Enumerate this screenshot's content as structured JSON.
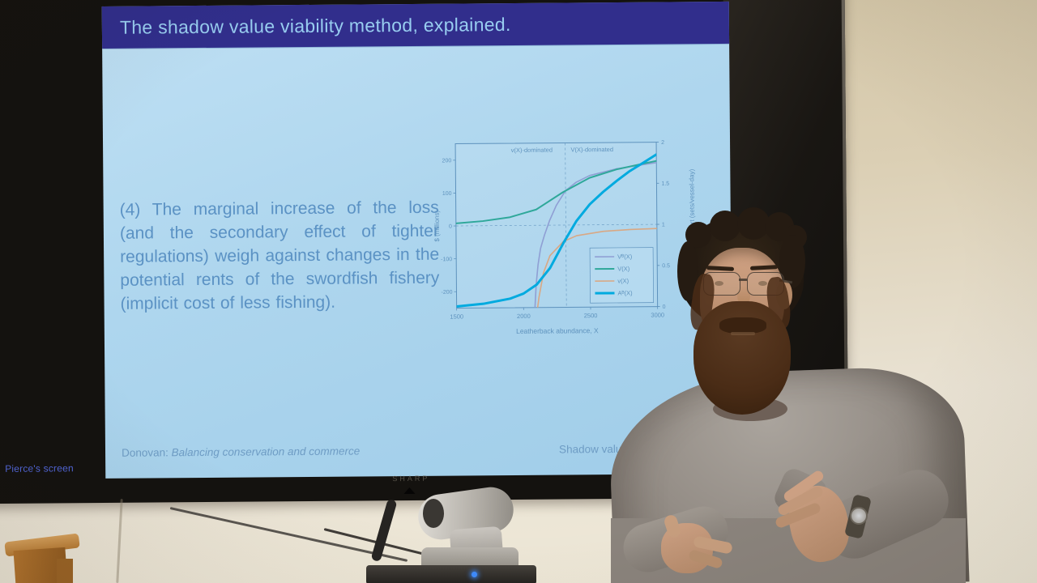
{
  "overlay": {
    "screen_share_label": "Pierce's screen"
  },
  "tv": {
    "brand": "SHARP"
  },
  "slide": {
    "title": "The shadow value viability method, explained.",
    "body": "(4) The marginal increase of the loss (and the secondary effect of tighter regulations) weigh against changes in the potential rents of the swordfish fishery (implicit cost of less fishing).",
    "footer": {
      "author": "Donovan:",
      "deck_title": "Balancing conservation and commerce",
      "right": "Shadow value viab"
    }
  },
  "chart_data": {
    "type": "line",
    "title": "",
    "xlabel": "Leatherback abundance, X",
    "ylabel_left": "$ (millions)",
    "ylabel_right": "Optimal fishing effort (sets/vessel-day)",
    "xlim": [
      1500,
      3000
    ],
    "ylim_left": [
      -250,
      250
    ],
    "ylim_right": [
      0,
      2
    ],
    "x_ticks": [
      1500,
      2000,
      2500,
      3000
    ],
    "y_ticks_left": [
      -200,
      -100,
      0,
      100,
      200
    ],
    "y_ticks_right": [
      0,
      0.5,
      1,
      1.5,
      2
    ],
    "annotations": [
      "v(X)-dominated",
      "V(X)-dominated"
    ],
    "vline_x": 2320,
    "hline_y_left": 0,
    "grid": false,
    "legend_position": "bottom-right",
    "series": [
      {
        "name": "Vᴮ(X)",
        "axis": "left",
        "color": "#8f9fd4",
        "width": 1.6,
        "x": [
          2085,
          2095,
          2110,
          2130,
          2160,
          2200,
          2250,
          2320,
          2400,
          2500,
          2700,
          2900,
          3000
        ],
        "y": [
          -250,
          -180,
          -120,
          -70,
          -30,
          15,
          60,
          105,
          130,
          150,
          170,
          182,
          188
        ]
      },
      {
        "name": "V(X)",
        "axis": "left",
        "color": "#2fa89a",
        "width": 2,
        "x": [
          1500,
          1700,
          1900,
          2100,
          2300,
          2500,
          2700,
          2900,
          3000
        ],
        "y": [
          8,
          14,
          25,
          48,
          100,
          143,
          168,
          185,
          193
        ]
      },
      {
        "name": "v(X)",
        "axis": "right",
        "color": "#d9a884",
        "width": 1.6,
        "x": [
          2105,
          2115,
          2130,
          2150,
          2200,
          2300,
          2400,
          2600,
          2800,
          3000
        ],
        "y": [
          0,
          0.12,
          0.25,
          0.42,
          0.63,
          0.8,
          0.87,
          0.92,
          0.94,
          0.95
        ]
      },
      {
        "name": "Aᴮ(X)",
        "axis": "right",
        "color": "#00aadf",
        "width": 3,
        "x": [
          1500,
          1700,
          1900,
          2000,
          2100,
          2200,
          2300,
          2400,
          2500,
          2600,
          2700,
          2800,
          2900,
          3000
        ],
        "y": [
          0.02,
          0.05,
          0.11,
          0.17,
          0.28,
          0.48,
          0.78,
          1.05,
          1.25,
          1.4,
          1.53,
          1.65,
          1.75,
          1.85
        ]
      }
    ]
  },
  "colors": {
    "header_bg": "#312e8c",
    "header_text": "#98cdf0",
    "slide_bg": "#abd4ee",
    "slide_text": "#5b92c4",
    "footer_text": "#6e9cc4",
    "chart_axis": "#5e92bd",
    "share_label": "#5166d8"
  }
}
